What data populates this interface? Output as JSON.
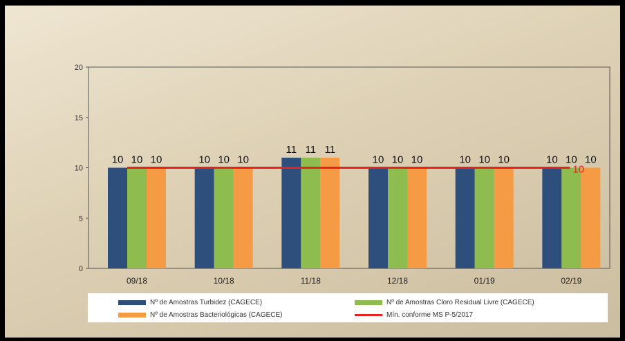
{
  "chart_data": {
    "type": "bar",
    "categories": [
      "09/18",
      "10/18",
      "11/18",
      "12/18",
      "01/19",
      "02/19"
    ],
    "series": [
      {
        "name": "Nº de Amostras Turbidez (CAGECE)",
        "values": [
          10,
          10,
          11,
          10,
          10,
          10
        ],
        "color": "#2e4f7c"
      },
      {
        "name": "Nº de Amostras Cloro Residual Livre (CAGECE)",
        "values": [
          10,
          10,
          11,
          10,
          10,
          10
        ],
        "color": "#8fbc4f"
      },
      {
        "name": "Nº de Amostras Bacteriológicas (CAGECE)",
        "values": [
          10,
          10,
          11,
          10,
          10,
          10
        ],
        "color": "#f59a45"
      }
    ],
    "reference_line": {
      "name": "Mín. conforme MS  P-5/2017",
      "value": 10,
      "label": "10",
      "color": "#e8201e"
    },
    "ylim": [
      0,
      20
    ],
    "yticks": [
      "0",
      "5",
      "10",
      "15",
      "20"
    ],
    "legend": "bottom",
    "grid": false
  }
}
